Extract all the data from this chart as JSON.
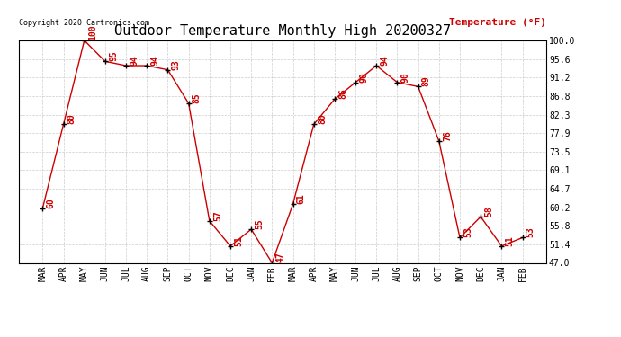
{
  "title": "Outdoor Temperature Monthly High 20200327",
  "ylabel": "Temperature (°F)",
  "copyright_text": "Copyright 2020 Cartronics.com",
  "background_color": "#ffffff",
  "grid_color": "#cccccc",
  "line_color": "#cc0000",
  "marker_color": "#000000",
  "label_color": "#cc0000",
  "title_color": "#000000",
  "ylabel_color": "#cc0000",
  "x_labels": [
    "MAR",
    "APR",
    "MAY",
    "JUN",
    "JUL",
    "AUG",
    "SEP",
    "OCT",
    "NOV",
    "DEC",
    "JAN",
    "FEB",
    "MAR",
    "APR",
    "MAY",
    "JUN",
    "JUL",
    "AUG",
    "SEP",
    "OCT",
    "NOV",
    "DEC",
    "JAN",
    "FEB"
  ],
  "y_values": [
    60,
    80,
    100,
    95,
    94,
    94,
    93,
    85,
    57,
    51,
    55,
    47,
    61,
    80,
    86,
    90,
    94,
    90,
    89,
    76,
    53,
    58,
    51,
    53
  ],
  "yticks": [
    47.0,
    51.4,
    55.8,
    60.2,
    64.7,
    69.1,
    73.5,
    77.9,
    82.3,
    86.8,
    91.2,
    95.6,
    100.0
  ],
  "ylim": [
    47.0,
    100.0
  ],
  "font_size_title": 11,
  "font_size_ytick": 7,
  "font_size_xtick": 7,
  "font_size_ylabel": 8,
  "font_size_copyright": 6,
  "font_size_data": 7
}
